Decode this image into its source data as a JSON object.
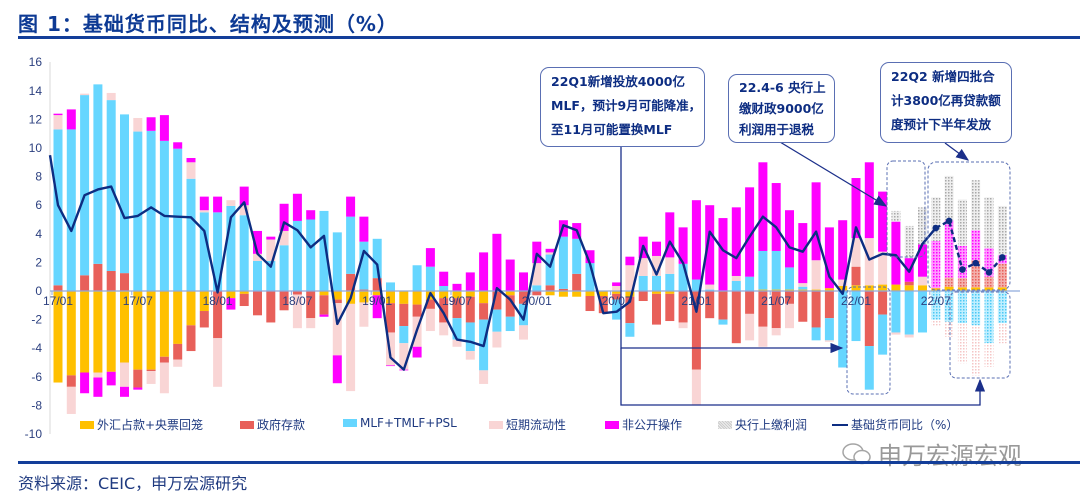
{
  "title": "图 1：基础货币同比、结构及预测（%）",
  "source": "资料来源：CEIC，申万宏源研究",
  "watermark": "申万宏源宏观",
  "annotations": [
    {
      "lines": [
        "22Q1新增投放4000亿",
        "MLF，预计9月可能降准，",
        "至11月可能置换MLF"
      ]
    },
    {
      "lines": [
        "22.4-6 央行上",
        "缴财政9000亿",
        "利润用于退税"
      ]
    },
    {
      "lines": [
        "22Q2 新增四批合",
        "计3800亿再贷款额",
        "度预计下半年发放"
      ]
    }
  ],
  "colors": {
    "fx": "#FFC000",
    "gov": "#E8605A",
    "mlf": "#66D6FF",
    "short": "#F9D5D5",
    "np": "#FF00FF",
    "profit": "#D0D0D0",
    "line": "#0D2D82"
  },
  "chart_data": {
    "type": "bar",
    "subtype": "stacked-bar-with-line",
    "start_month": "2017-01",
    "n_months": 72,
    "forecast_from_index": 66,
    "ylim": [
      -10,
      16
    ],
    "yticks": [
      16,
      14,
      12,
      10,
      8,
      6,
      4,
      2,
      0,
      -2,
      -4,
      -6,
      -8,
      -10
    ],
    "xticks": [
      {
        "i": 0,
        "label": "17/01"
      },
      {
        "i": 6,
        "label": "17/07"
      },
      {
        "i": 12,
        "label": "18/01"
      },
      {
        "i": 18,
        "label": "18/07"
      },
      {
        "i": 24,
        "label": "19/01"
      },
      {
        "i": 30,
        "label": "19/07"
      },
      {
        "i": 36,
        "label": "20/01"
      },
      {
        "i": 42,
        "label": "20/07"
      },
      {
        "i": 48,
        "label": "21/01"
      },
      {
        "i": 54,
        "label": "21/07"
      },
      {
        "i": 60,
        "label": "22/01"
      },
      {
        "i": 66,
        "label": "22/07"
      }
    ],
    "series": [
      {
        "key": "fx",
        "name": "外汇占款+央票回笼",
        "values": [
          -6.4,
          -5.9,
          -5.7,
          -5.7,
          -5.65,
          -5.0,
          -5.5,
          -5.5,
          -4.6,
          -3.7,
          -2.4,
          -1.4,
          0,
          -0.5,
          -0.2,
          0,
          0,
          0,
          0,
          0,
          -0.3,
          -0.6,
          -0.9,
          -0.8,
          -0.3,
          -0.85,
          -0.9,
          -0.95,
          -0.6,
          -0.5,
          -0.5,
          -0.4,
          -0.85,
          0,
          -0.3,
          0,
          0,
          -0.3,
          -0.4,
          -0.4,
          -0.35,
          -0.35,
          -0.2,
          -0.4,
          0,
          -0.2,
          -0.2,
          0,
          0,
          0,
          0,
          0,
          0,
          0.1,
          0.1,
          0.1,
          0.1,
          0.1,
          0.2,
          0.35,
          0.4,
          0.4,
          0.45,
          0.45,
          0.4,
          0.4,
          0.2,
          0.3,
          0.25,
          0.25,
          0.25,
          0.25
        ]
      },
      {
        "key": "gov",
        "name": "政府存款",
        "values": [
          0.4,
          -0.8,
          1.1,
          1.9,
          1.4,
          1.25,
          -1.25,
          -0.1,
          -0.4,
          -1.1,
          -1.8,
          -1.15,
          -3.3,
          0,
          -0.85,
          -1.7,
          -2.2,
          -1.35,
          -0.25,
          -1.9,
          -1.35,
          -0.25,
          1.2,
          0.1,
          0.9,
          -2.05,
          -1.55,
          -0.85,
          -0.65,
          -1.7,
          -1.4,
          -1.8,
          -1.15,
          -1.3,
          -1.5,
          -0.9,
          -0.3,
          0.4,
          0.15,
          1.2,
          -1.05,
          -1.2,
          -0.4,
          -1.85,
          -0.7,
          -2.15,
          -1.9,
          -2.2,
          -5.5,
          -1.9,
          -2.0,
          -3.65,
          -1.6,
          -2.5,
          -2.6,
          -0.9,
          -2.15,
          -2.55,
          -1.9,
          0,
          1.3,
          -3.85,
          -1.65,
          0,
          0.25,
          0,
          0,
          0.65,
          0.65,
          1.9,
          0.75,
          1.65
        ]
      },
      {
        "key": "mlf",
        "name": "MLF+TMLF+PSL",
        "values": [
          10.9,
          11.3,
          12.6,
          12.55,
          11.95,
          11.1,
          11.15,
          11.2,
          10.5,
          9.95,
          7.85,
          5.5,
          5.5,
          5.95,
          5.3,
          2.1,
          2.1,
          3.2,
          4.9,
          5.0,
          5.6,
          4.1,
          4.0,
          3.35,
          2.75,
          0.6,
          -1.2,
          1.8,
          1.7,
          0.35,
          -1.5,
          -2.0,
          -3.55,
          -1.55,
          -1.0,
          -1.5,
          0.4,
          2.15,
          3.65,
          2.45,
          1.95,
          0,
          -1.4,
          -0.95,
          1.05,
          1.05,
          1.2,
          1.9,
          0.8,
          0.1,
          -0.35,
          0.7,
          1.0,
          2.7,
          2.7,
          1.55,
          0.2,
          -0.9,
          -1.55,
          -5.35,
          -3.5,
          -3.05,
          -2.8,
          -2.9,
          -3.05,
          -2.9,
          -2.0,
          -2.15,
          -2.25,
          -2.4,
          -3.65,
          -2.25
        ]
      },
      {
        "key": "short",
        "name": "短期流动性",
        "values": [
          1.0,
          -1.9,
          0.1,
          -0.35,
          0.5,
          -1.7,
          0.95,
          -0.9,
          -2.15,
          -0.5,
          1.15,
          0.15,
          -3.4,
          0.4,
          0.7,
          0.5,
          1.5,
          1.0,
          -2.35,
          -0.7,
          0,
          -3.65,
          -6.1,
          -1.7,
          0,
          -2.3,
          -1.85,
          -2.1,
          -1.55,
          -0.9,
          -0.5,
          -0.6,
          -0.95,
          -1.1,
          0,
          -1.0,
          1.55,
          0.15,
          0,
          0,
          0,
          0,
          0.35,
          1.8,
          1.25,
          1.4,
          1.15,
          -0.4,
          -2.5,
          0.35,
          0,
          0.35,
          -1.85,
          -1.4,
          -0.5,
          -1.7,
          0.25,
          2.05,
          -0.1,
          0.45,
          2.0,
          3.3,
          2.3,
          -0.15,
          -0.2,
          0.6,
          -0.4,
          -1.05,
          -2.8,
          -3.5,
          -1.65,
          -1.4
        ]
      },
      {
        "key": "np",
        "name": "非公开操作",
        "values": [
          0.1,
          1.4,
          -1.45,
          -1.35,
          -0.95,
          -0.7,
          -0.15,
          0.95,
          1.8,
          0.45,
          0.3,
          0.95,
          1.1,
          -0.8,
          1.3,
          1.6,
          0.2,
          1.9,
          1.9,
          0.65,
          -0.15,
          -1.95,
          1.4,
          1.75,
          -1.6,
          -0.05,
          -0.05,
          -0.75,
          1.3,
          1.0,
          0.5,
          1.3,
          2.7,
          4.0,
          2.2,
          1.3,
          1.5,
          0.25,
          1.15,
          1.1,
          0.9,
          0,
          0.25,
          0.6,
          1.5,
          1.0,
          3.15,
          2.55,
          5.55,
          5.55,
          5.1,
          4.8,
          6.25,
          6.2,
          4.75,
          4.0,
          4.2,
          5.45,
          4.25,
          4.15,
          4.2,
          5.3,
          4.2,
          4.4,
          1.65,
          2.25,
          3.3,
          4.0,
          2.25,
          2.1,
          2.0,
          0.6
        ]
      },
      {
        "key": "profit",
        "name": "央行上缴利润",
        "values": [
          0,
          0,
          0,
          0,
          0,
          0,
          0,
          0,
          0,
          0,
          0,
          0,
          0,
          0,
          0,
          0,
          0,
          0,
          0,
          0,
          0,
          0,
          0,
          0,
          0,
          0,
          0,
          0,
          0,
          0,
          0,
          0,
          0,
          0,
          0,
          0,
          0,
          0,
          0,
          0,
          0,
          0,
          0,
          0,
          0,
          0,
          0,
          0,
          0,
          0,
          0,
          0,
          0,
          0,
          0,
          0,
          0,
          0,
          0,
          0,
          0,
          0,
          0,
          0.75,
          2.25,
          2.6,
          3.05,
          3.1,
          3.25,
          3.5,
          3.55,
          3.45
        ]
      }
    ],
    "line": {
      "name": "基础货币同比（%）",
      "start_index": -1,
      "values": [
        9.5,
        6.0,
        4.2,
        6.7,
        7.1,
        7.3,
        5.1,
        5.25,
        5.85,
        5.25,
        5.2,
        5.15,
        4.2,
        -0.1,
        5.15,
        6.2,
        2.6,
        1.7,
        4.8,
        4.25,
        3.05,
        3.85,
        -2.3,
        -0.5,
        2.8,
        1.85,
        -4.65,
        -5.5,
        -2.7,
        -0.15,
        -1.55,
        -3.4,
        -3.55,
        -3.85,
        0.2,
        -0.6,
        -2.0,
        2.6,
        1.7,
        4.6,
        4.25,
        1.9,
        -1.55,
        -1.45,
        -0.75,
        3.15,
        1.15,
        3.45,
        1.95,
        -1.45,
        4.15,
        2.85,
        2.3,
        3.8,
        5.2,
        4.45,
        3.05,
        2.75,
        4.15,
        1.0,
        -0.2,
        4.45,
        2.2,
        2.6,
        2.5,
        1.35,
        3.3,
        4.4,
        4.9,
        1.5,
        1.95,
        1.3,
        2.35
      ]
    }
  }
}
